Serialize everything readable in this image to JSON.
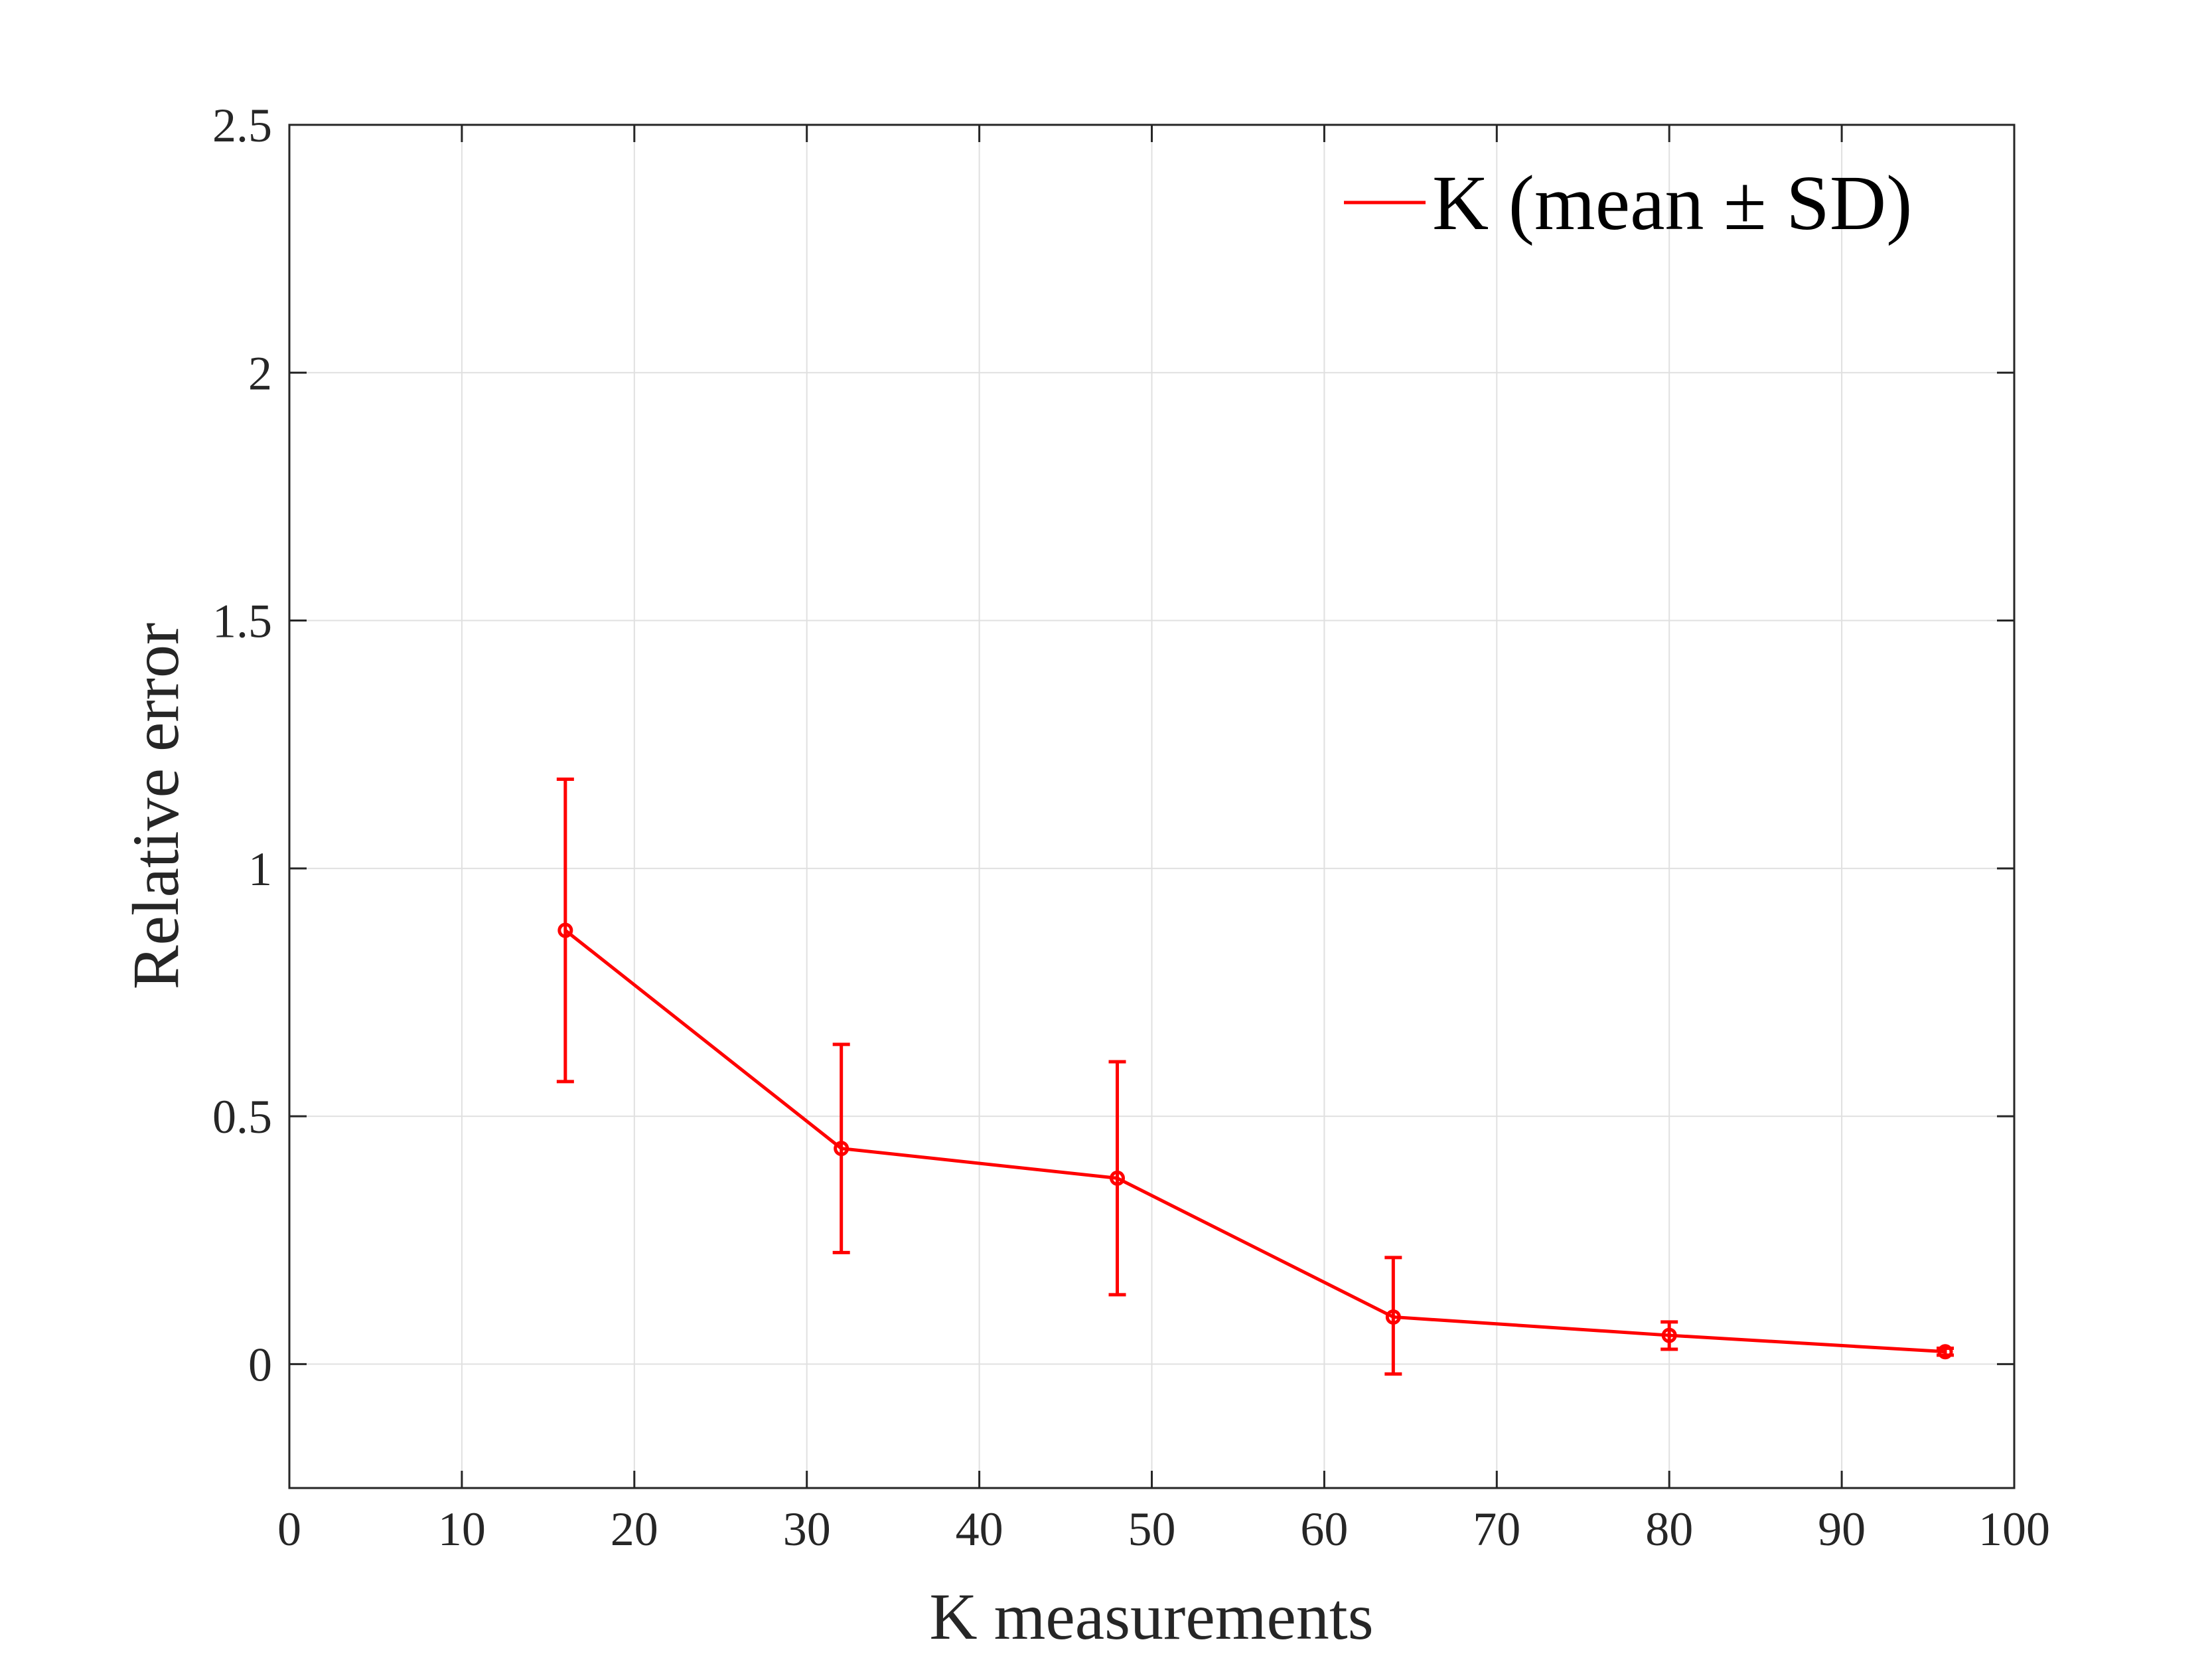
{
  "chart_data": {
    "type": "line",
    "title": "",
    "xlabel": "K measurements",
    "ylabel": "Relative error",
    "xlim": [
      0,
      100
    ],
    "ylim": [
      -0.25,
      2.5
    ],
    "xticks": [
      0,
      10,
      20,
      30,
      40,
      50,
      60,
      70,
      80,
      90,
      100
    ],
    "xtick_labels": [
      "0",
      "10",
      "20",
      "30",
      "40",
      "50",
      "60",
      "70",
      "80",
      "90",
      "100"
    ],
    "yticks": [
      0,
      0.5,
      1,
      1.5,
      2,
      2.5
    ],
    "ytick_labels": [
      "0",
      "0.5",
      "1",
      "1.5",
      "2",
      "2.5"
    ],
    "grid": true,
    "legend_position": "top-right",
    "series": [
      {
        "name": "K (mean ± SD)",
        "color": "#ff0000",
        "x": [
          16,
          32,
          48,
          64,
          80,
          96
        ],
        "y": [
          0.875,
          0.435,
          0.375,
          0.095,
          0.058,
          0.025
        ],
        "error_low": [
          0.57,
          0.225,
          0.14,
          -0.02,
          0.03,
          0.018
        ],
        "error_high": [
          1.18,
          0.645,
          0.61,
          0.215,
          0.085,
          0.032
        ]
      }
    ]
  }
}
